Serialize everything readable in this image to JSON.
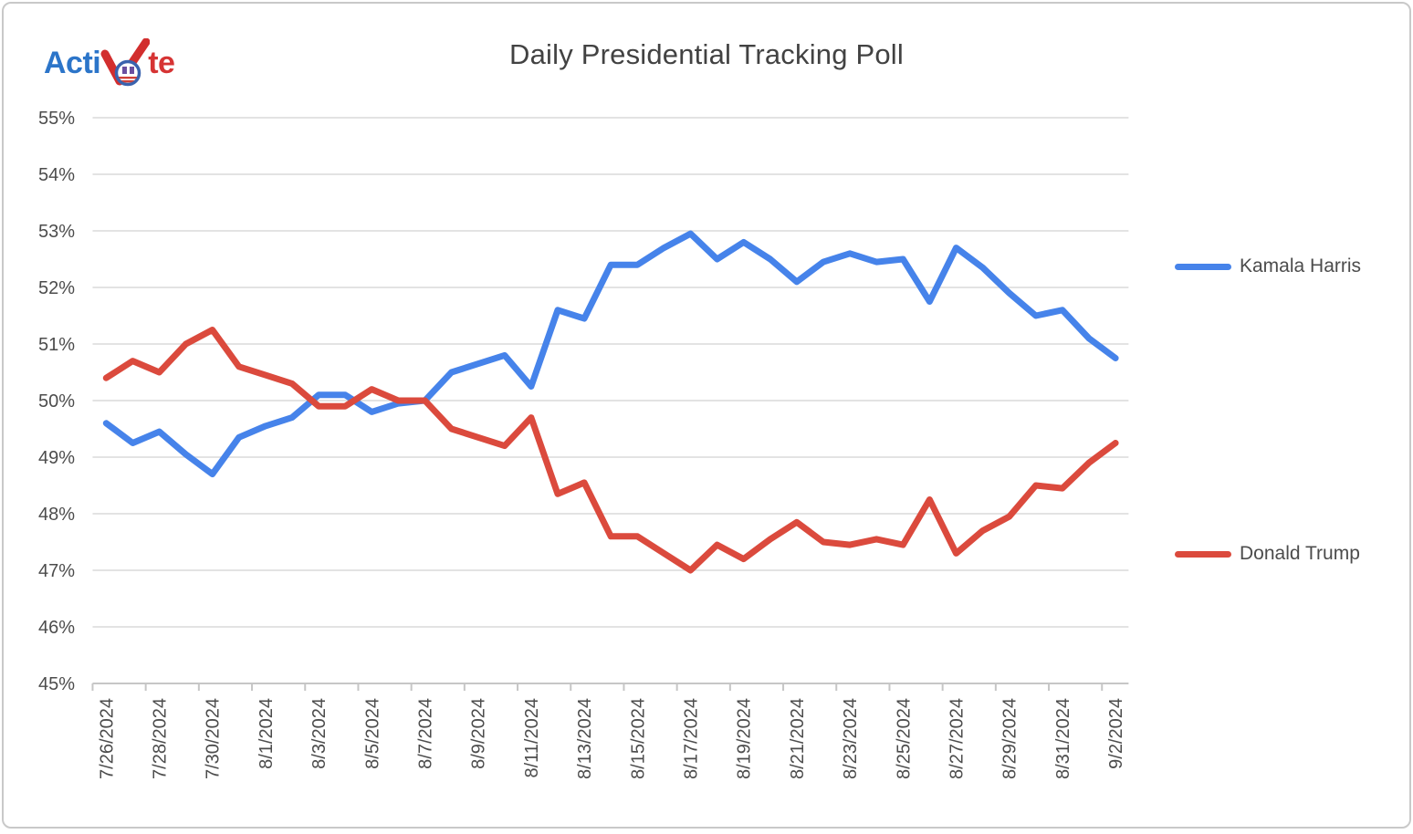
{
  "logo": {
    "part_blue": "Acti",
    "part_red": "te",
    "check_color": "#d22e2e",
    "badge_ring_color": "#3a63ae",
    "badge_stripe_color": "#d04038",
    "badge_figure_color": "#6a4fa0"
  },
  "title": "Daily Presidential Tracking Poll",
  "axes": {
    "ytick_suffix": "%",
    "label_color": "#4c4c4c",
    "grid_color": "#dadada",
    "axis_color": "#c6c6c6"
  },
  "chart_data": {
    "type": "line",
    "title": "Daily Presidential Tracking Poll",
    "x": [
      "7/26/2024",
      "7/27/2024",
      "7/28/2024",
      "7/29/2024",
      "7/30/2024",
      "7/31/2024",
      "8/1/2024",
      "8/2/2024",
      "8/3/2024",
      "8/4/2024",
      "8/5/2024",
      "8/6/2024",
      "8/7/2024",
      "8/8/2024",
      "8/9/2024",
      "8/10/2024",
      "8/11/2024",
      "8/12/2024",
      "8/13/2024",
      "8/14/2024",
      "8/15/2024",
      "8/16/2024",
      "8/17/2024",
      "8/18/2024",
      "8/19/2024",
      "8/20/2024",
      "8/21/2024",
      "8/22/2024",
      "8/23/2024",
      "8/24/2024",
      "8/25/2024",
      "8/26/2024",
      "8/27/2024",
      "8/28/2024",
      "8/29/2024",
      "8/30/2024",
      "8/31/2024",
      "9/1/2024",
      "9/2/2024"
    ],
    "label_every": 2,
    "series": [
      {
        "name": "Kamala Harris",
        "color": "#4683ea",
        "values": [
          49.6,
          49.25,
          49.45,
          49.05,
          48.7,
          49.35,
          49.55,
          49.7,
          50.1,
          50.1,
          49.8,
          49.95,
          50.0,
          50.5,
          50.65,
          50.8,
          50.25,
          51.6,
          51.45,
          52.4,
          52.4,
          52.7,
          52.95,
          52.5,
          52.8,
          52.5,
          52.1,
          52.45,
          52.6,
          52.45,
          52.5,
          51.75,
          52.7,
          52.35,
          51.9,
          51.5,
          51.6,
          51.1,
          50.75
        ]
      },
      {
        "name": "Donald Trump",
        "color": "#db4a3d",
        "values": [
          50.4,
          50.7,
          50.5,
          51.0,
          51.25,
          50.6,
          50.45,
          50.3,
          49.9,
          49.9,
          50.2,
          50.0,
          50.0,
          49.5,
          49.35,
          49.2,
          49.7,
          48.35,
          48.55,
          47.6,
          47.6,
          47.3,
          47.0,
          47.45,
          47.2,
          47.55,
          47.85,
          47.5,
          47.45,
          47.55,
          47.45,
          48.25,
          47.3,
          47.7,
          47.95,
          48.5,
          48.45,
          48.9,
          49.25
        ]
      }
    ],
    "ylim": [
      45,
      55
    ],
    "yticks": [
      45,
      46,
      47,
      48,
      49,
      50,
      51,
      52,
      53,
      54,
      55
    ],
    "grid": true,
    "legend_position": "right"
  }
}
